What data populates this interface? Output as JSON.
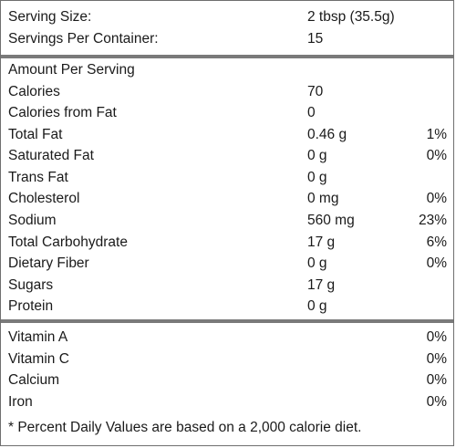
{
  "serving": {
    "size_label": "Serving Size:",
    "size_value": "2 tbsp (35.5g)",
    "per_container_label": "Servings Per Container:",
    "per_container_value": "15"
  },
  "nutrients": {
    "heading": "Amount Per Serving",
    "rows": [
      {
        "name": "Calories",
        "amount": "70",
        "dv": ""
      },
      {
        "name": "Calories from Fat",
        "amount": "0",
        "dv": ""
      },
      {
        "name": "Total Fat",
        "amount": "0.46 g",
        "dv": "1%"
      },
      {
        "name": "Saturated Fat",
        "amount": "0 g",
        "dv": "0%"
      },
      {
        "name": "Trans Fat",
        "amount": "0 g",
        "dv": ""
      },
      {
        "name": "Cholesterol",
        "amount": "0 mg",
        "dv": "0%"
      },
      {
        "name": "Sodium",
        "amount": "560 mg",
        "dv": "23%"
      },
      {
        "name": "Total Carbohydrate",
        "amount": "17 g",
        "dv": "6%"
      },
      {
        "name": "Dietary Fiber",
        "amount": "0 g",
        "dv": "0%"
      },
      {
        "name": "Sugars",
        "amount": "17 g",
        "dv": ""
      },
      {
        "name": "Protein",
        "amount": "0 g",
        "dv": ""
      }
    ]
  },
  "vitamins": {
    "rows": [
      {
        "name": "Vitamin A",
        "dv": "0%"
      },
      {
        "name": "Vitamin C",
        "dv": "0%"
      },
      {
        "name": "Calcium",
        "dv": "0%"
      },
      {
        "name": "Iron",
        "dv": "0%"
      }
    ]
  },
  "footnote": "* Percent Daily Values are based on a 2,000 calorie diet."
}
